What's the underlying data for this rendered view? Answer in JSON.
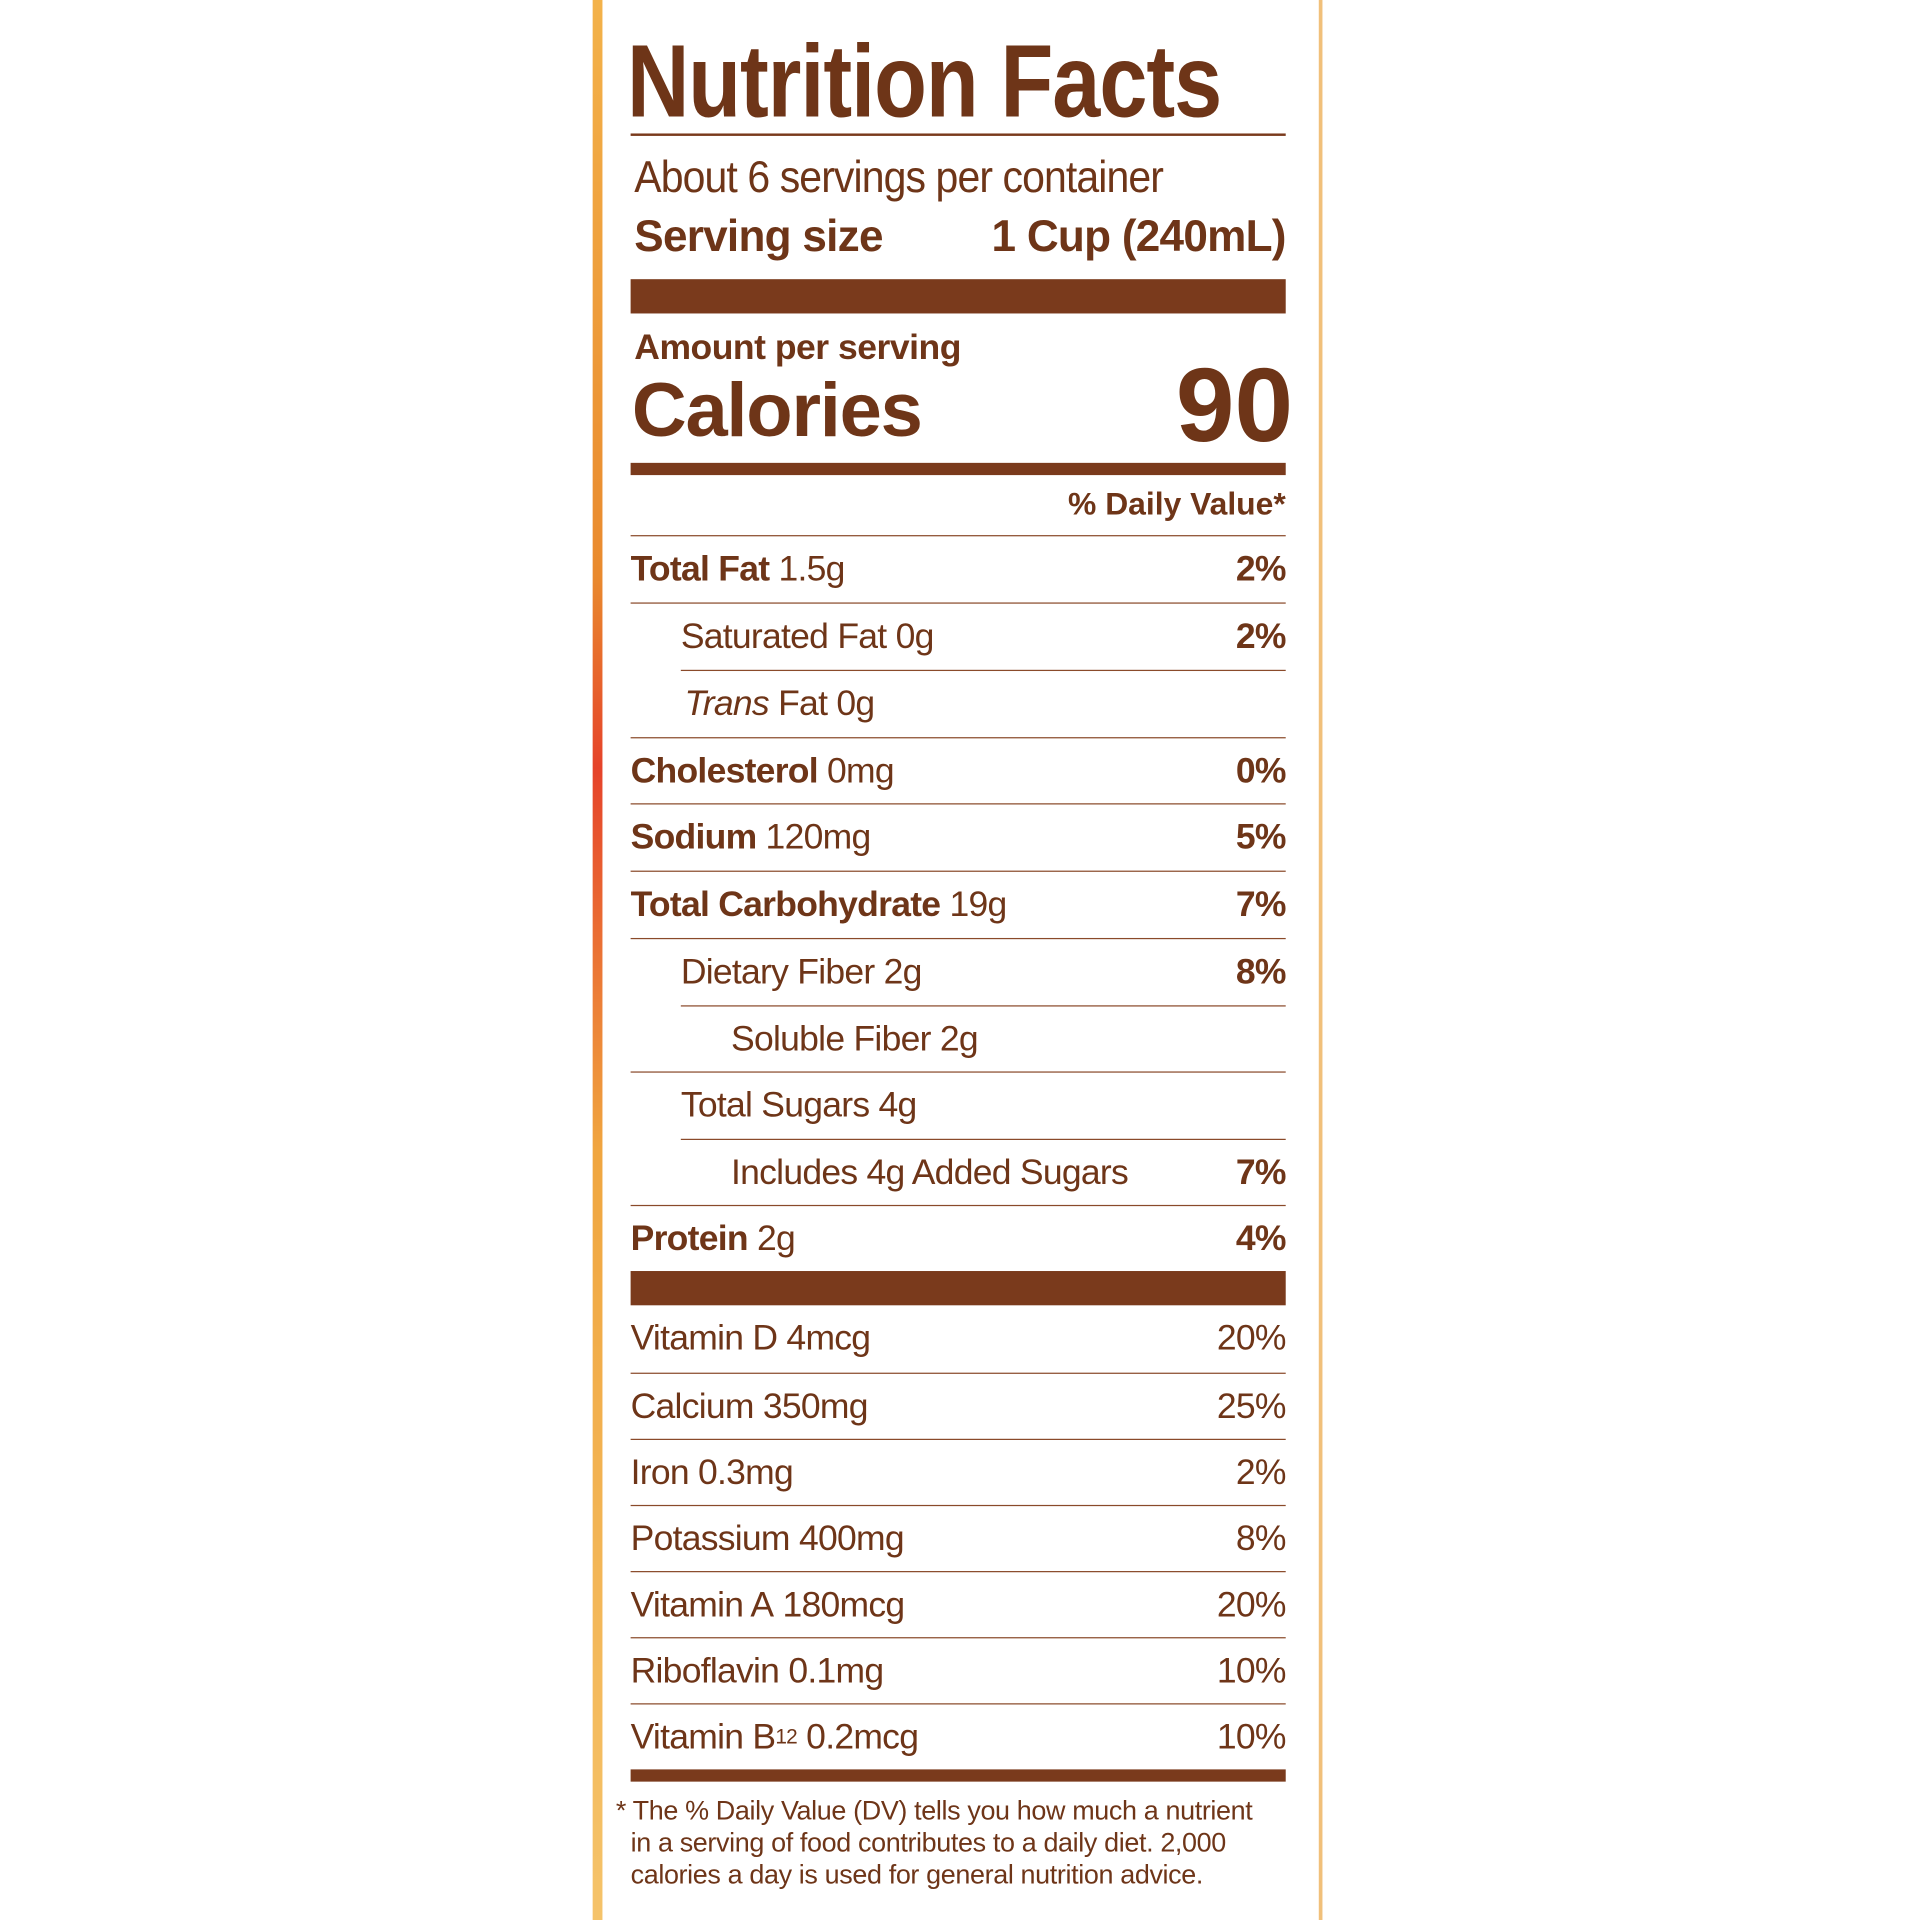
{
  "header": {
    "title": "Nutrition Facts",
    "servings": "About 6 servings per container",
    "serving_size_label": "Serving size",
    "serving_size_value": "1 Cup (240mL)"
  },
  "calories": {
    "amount_per_serving": "Amount per serving",
    "label": "Calories",
    "value": "90"
  },
  "daily_value_header": "% Daily Value*",
  "nutrients": [
    {
      "name": "Total Fat",
      "amount": "1.5g",
      "dv": "2%"
    },
    {
      "name": "Saturated Fat",
      "amount": "0g",
      "dv": "2%"
    },
    {
      "name_italic": "Trans",
      "name": "Fat",
      "amount": "0g"
    },
    {
      "name": "Cholesterol",
      "amount": "0mg",
      "dv": "0%"
    },
    {
      "name": "Sodium",
      "amount": "120mg",
      "dv": "5%"
    },
    {
      "name": "Total Carbohydrate",
      "amount": "19g",
      "dv": "7%"
    },
    {
      "name": "Dietary Fiber",
      "amount": "2g",
      "dv": "8%"
    },
    {
      "name": "Soluble Fiber",
      "amount": "2g"
    },
    {
      "name": "Total Sugars",
      "amount": "4g"
    },
    {
      "name": "Includes 4g Added Sugars",
      "dv": "7%"
    },
    {
      "name": "Protein",
      "amount": "2g",
      "dv": "4%"
    }
  ],
  "vitamins": [
    {
      "name": "Vitamin D",
      "amount": "4mcg",
      "dv": "20%"
    },
    {
      "name": "Calcium",
      "amount": "350mg",
      "dv": "25%"
    },
    {
      "name": "Iron",
      "amount": "0.3mg",
      "dv": "2%"
    },
    {
      "name": "Potassium",
      "amount": "400mg",
      "dv": "8%"
    },
    {
      "name": "Vitamin A",
      "amount": "180mcg",
      "dv": "20%"
    },
    {
      "name": "Riboflavin",
      "amount": "0.1mg",
      "dv": "10%"
    },
    {
      "name": "Vitamin B",
      "sub": "12",
      "amount": "0.2mcg",
      "dv": "10%"
    }
  ],
  "footnote": [
    "* The % Daily Value (DV) tells you how much a nutrient",
    "in a serving of food contributes to a daily diet. 2,000",
    "calories a day is used for general nutrition advice."
  ]
}
